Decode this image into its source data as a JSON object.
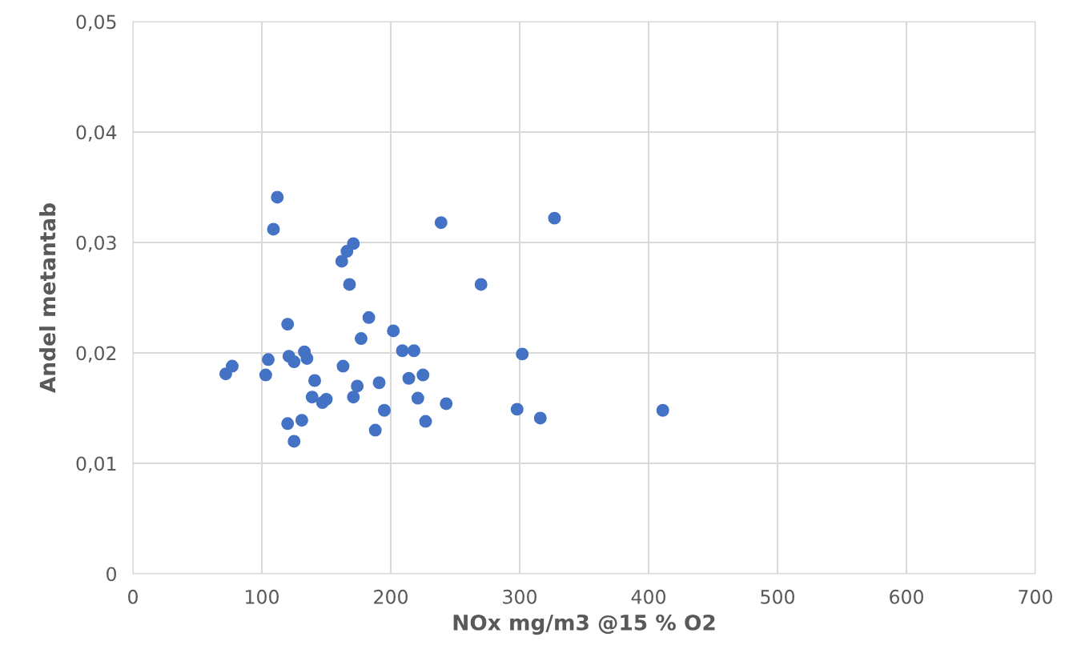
{
  "chart_data": {
    "type": "scatter",
    "xlabel": "NOx mg/m3 @15 % O2",
    "ylabel": "Andel metantab",
    "xlim": [
      0,
      700
    ],
    "xticks": [
      0,
      100,
      200,
      300,
      400,
      500,
      600,
      700
    ],
    "ylim": [
      0,
      0.05
    ],
    "yticks": [
      {
        "value": 0,
        "label": "0"
      },
      {
        "value": 0.01,
        "label": "0,01"
      },
      {
        "value": 0.02,
        "label": "0,02"
      },
      {
        "value": 0.03,
        "label": "0,03"
      },
      {
        "value": 0.04,
        "label": "0,04"
      },
      {
        "value": 0.05,
        "label": "0,05"
      }
    ],
    "grid": true,
    "marker": "circle",
    "series": [
      {
        "color": "#4472c4",
        "x": [
          72,
          77,
          103,
          105,
          112,
          109,
          120,
          120,
          121,
          125,
          125,
          131,
          133,
          135,
          139,
          141,
          147,
          150,
          162,
          163,
          166,
          168,
          171,
          171,
          174,
          177,
          183,
          188,
          191,
          195,
          202,
          209,
          214,
          218,
          221,
          225,
          227,
          239,
          243,
          270,
          298,
          302,
          316,
          327,
          411
        ],
        "values": [
          0.0181,
          0.0188,
          0.018,
          0.0194,
          0.0341,
          0.0312,
          0.0136,
          0.0226,
          0.0197,
          0.012,
          0.0192,
          0.0139,
          0.0201,
          0.0195,
          0.016,
          0.0175,
          0.0155,
          0.0158,
          0.0283,
          0.0188,
          0.0292,
          0.0262,
          0.0299,
          0.016,
          0.017,
          0.0213,
          0.0232,
          0.013,
          0.0173,
          0.0148,
          0.022,
          0.0202,
          0.0177,
          0.0202,
          0.0159,
          0.018,
          0.0138,
          0.0318,
          0.0154,
          0.0262,
          0.0149,
          0.0199,
          0.0141,
          0.0322,
          0.0148
        ]
      }
    ]
  }
}
